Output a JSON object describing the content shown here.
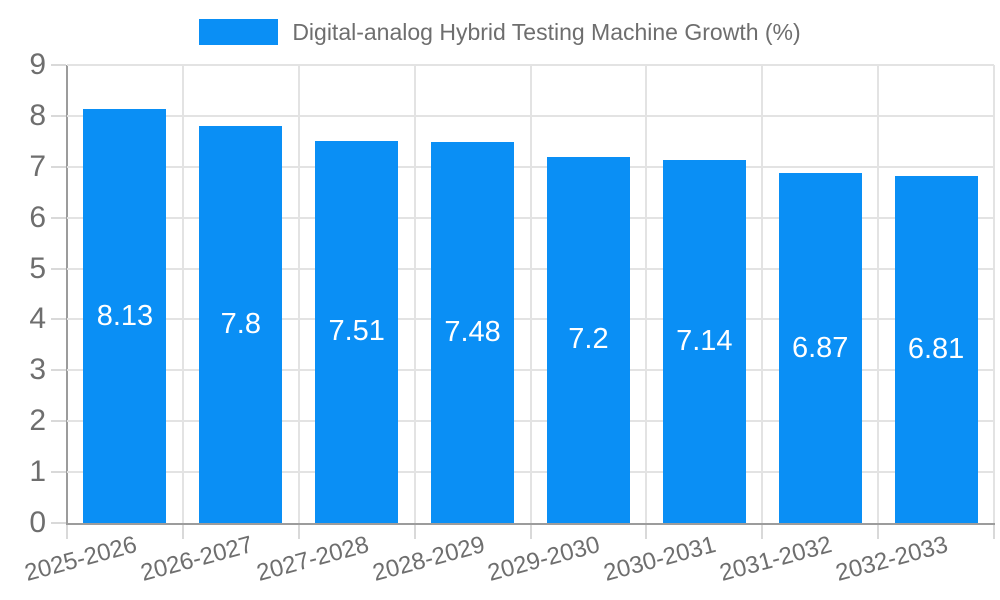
{
  "colors": {
    "bar": "#0a8ff5",
    "axis": "#9c9c9c",
    "grid": "#e3e3e3",
    "tick": "#d9d9d9",
    "label": "#6e6e6e",
    "value_label": "#ffffff",
    "background": "#ffffff"
  },
  "chart_data": {
    "type": "bar",
    "title": "Digital-analog Hybrid Testing Machine Growth (%)",
    "legend": [
      "Digital-analog Hybrid Testing Machine Growth (%)"
    ],
    "legend_position": "top",
    "categories": [
      "2025-2026",
      "2026-2027",
      "2027-2028",
      "2028-2029",
      "2029-2030",
      "2030-2031",
      "2031-2032",
      "2032-2033"
    ],
    "values": [
      8.13,
      7.8,
      7.51,
      7.48,
      7.2,
      7.14,
      6.87,
      6.81
    ],
    "value_labels": [
      "8.13",
      "7.8",
      "7.51",
      "7.48",
      "7.2",
      "7.14",
      "6.87",
      "6.81"
    ],
    "xlabel": "",
    "ylabel": "",
    "ylim": [
      0,
      9
    ],
    "yticks": [
      0,
      1,
      2,
      3,
      4,
      5,
      6,
      7,
      8,
      9
    ],
    "grid": true,
    "x_label_rotation_deg": -15
  }
}
